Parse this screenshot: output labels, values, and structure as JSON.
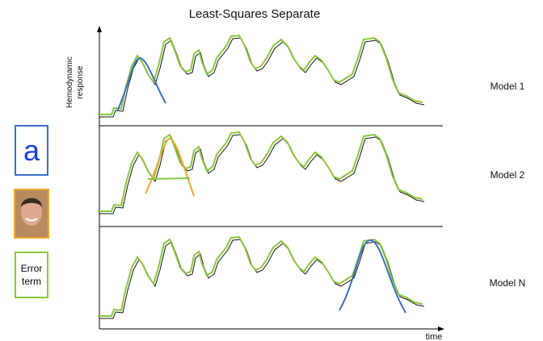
{
  "title": "Least-Squares Separate",
  "axes": {
    "y_label": "Hemodynamic response",
    "x_label": "time"
  },
  "models": [
    {
      "label": "Model 1"
    },
    {
      "label": "Model 2"
    },
    {
      "label": "Model N"
    }
  ],
  "legend": {
    "letter": "a",
    "error": "Error term"
  }
}
